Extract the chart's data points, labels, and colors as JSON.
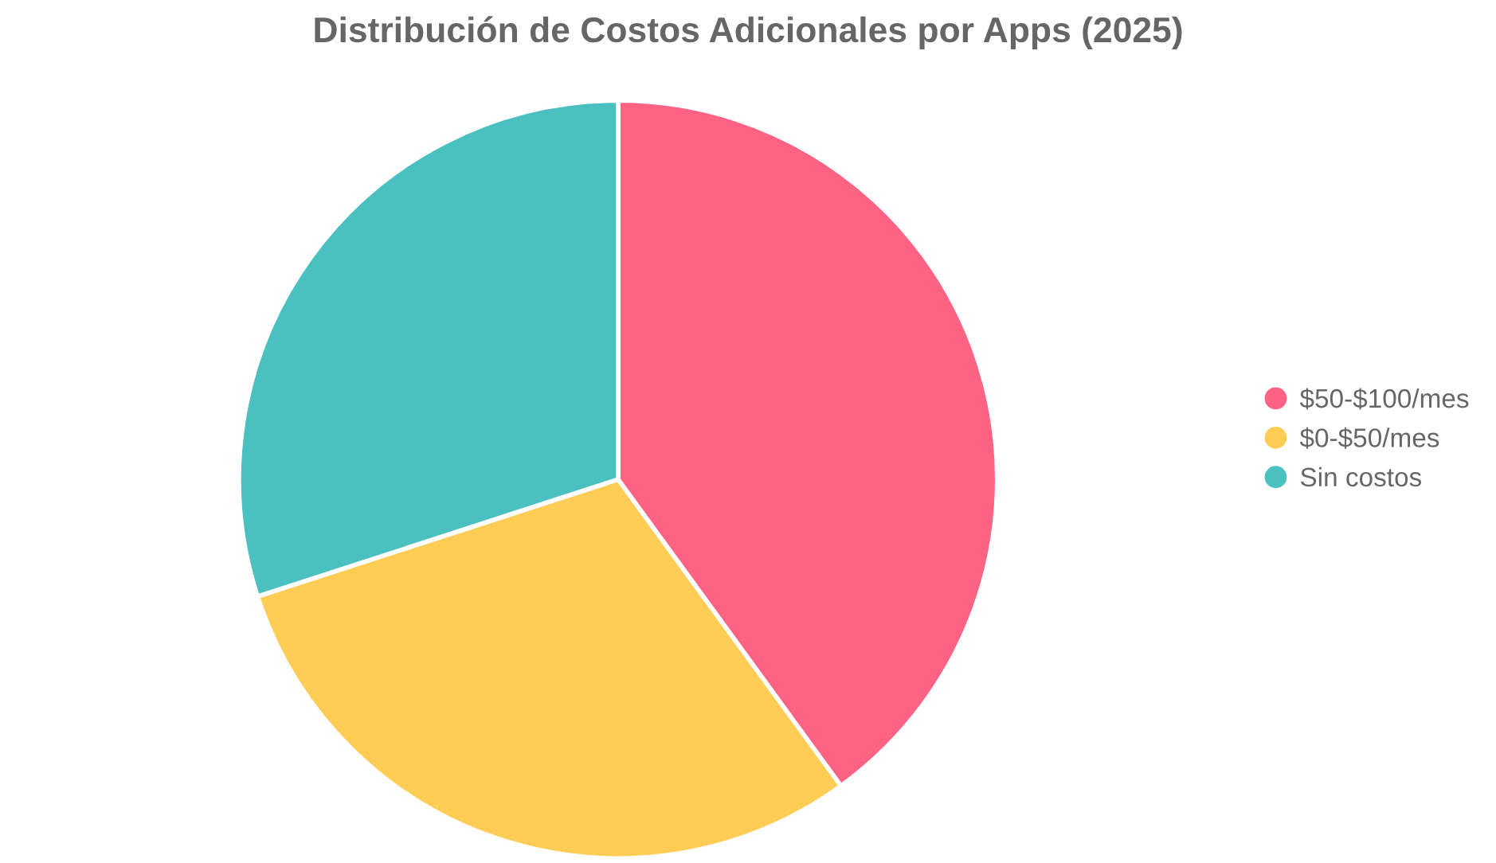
{
  "chart_data": {
    "type": "pie",
    "title": "Distribución de Costos Adicionales por Apps (2025)",
    "categories": [
      "$50-$100/mes",
      "$0-$50/mes",
      "Sin costos"
    ],
    "values": [
      40,
      30,
      30
    ],
    "colors": [
      "#ff6384",
      "#ffcd56",
      "#4bc0c0"
    ],
    "legend": "right"
  }
}
